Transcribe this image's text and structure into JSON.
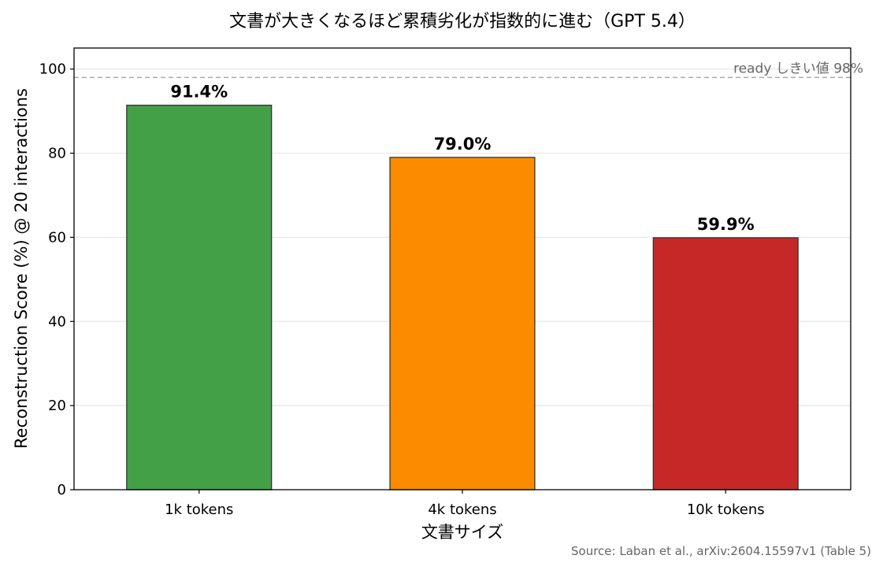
{
  "chart_data": {
    "type": "bar",
    "title": "文書が大きくなるほど累積劣化が指数的に進む（GPT 5.4）",
    "xlabel": "文書サイズ",
    "ylabel": "Reconstruction Score (%) @ 20 interactions",
    "categories": [
      "1k tokens",
      "4k tokens",
      "10k tokens"
    ],
    "values": [
      91.4,
      79.0,
      59.9
    ],
    "value_labels": [
      "91.4%",
      "79.0%",
      "59.9%"
    ],
    "bar_colors": [
      "#43a047",
      "#fb8c00",
      "#c62828"
    ],
    "ylim": [
      0,
      105
    ],
    "yticks": [
      0,
      20,
      40,
      60,
      80,
      100
    ],
    "grid": "horizontal",
    "threshold": {
      "value": 98,
      "label": "ready しきい値 98%",
      "color": "#aaaaaa"
    },
    "source": "Source: Laban et al., arXiv:2604.15597v1 (Table 5)"
  }
}
